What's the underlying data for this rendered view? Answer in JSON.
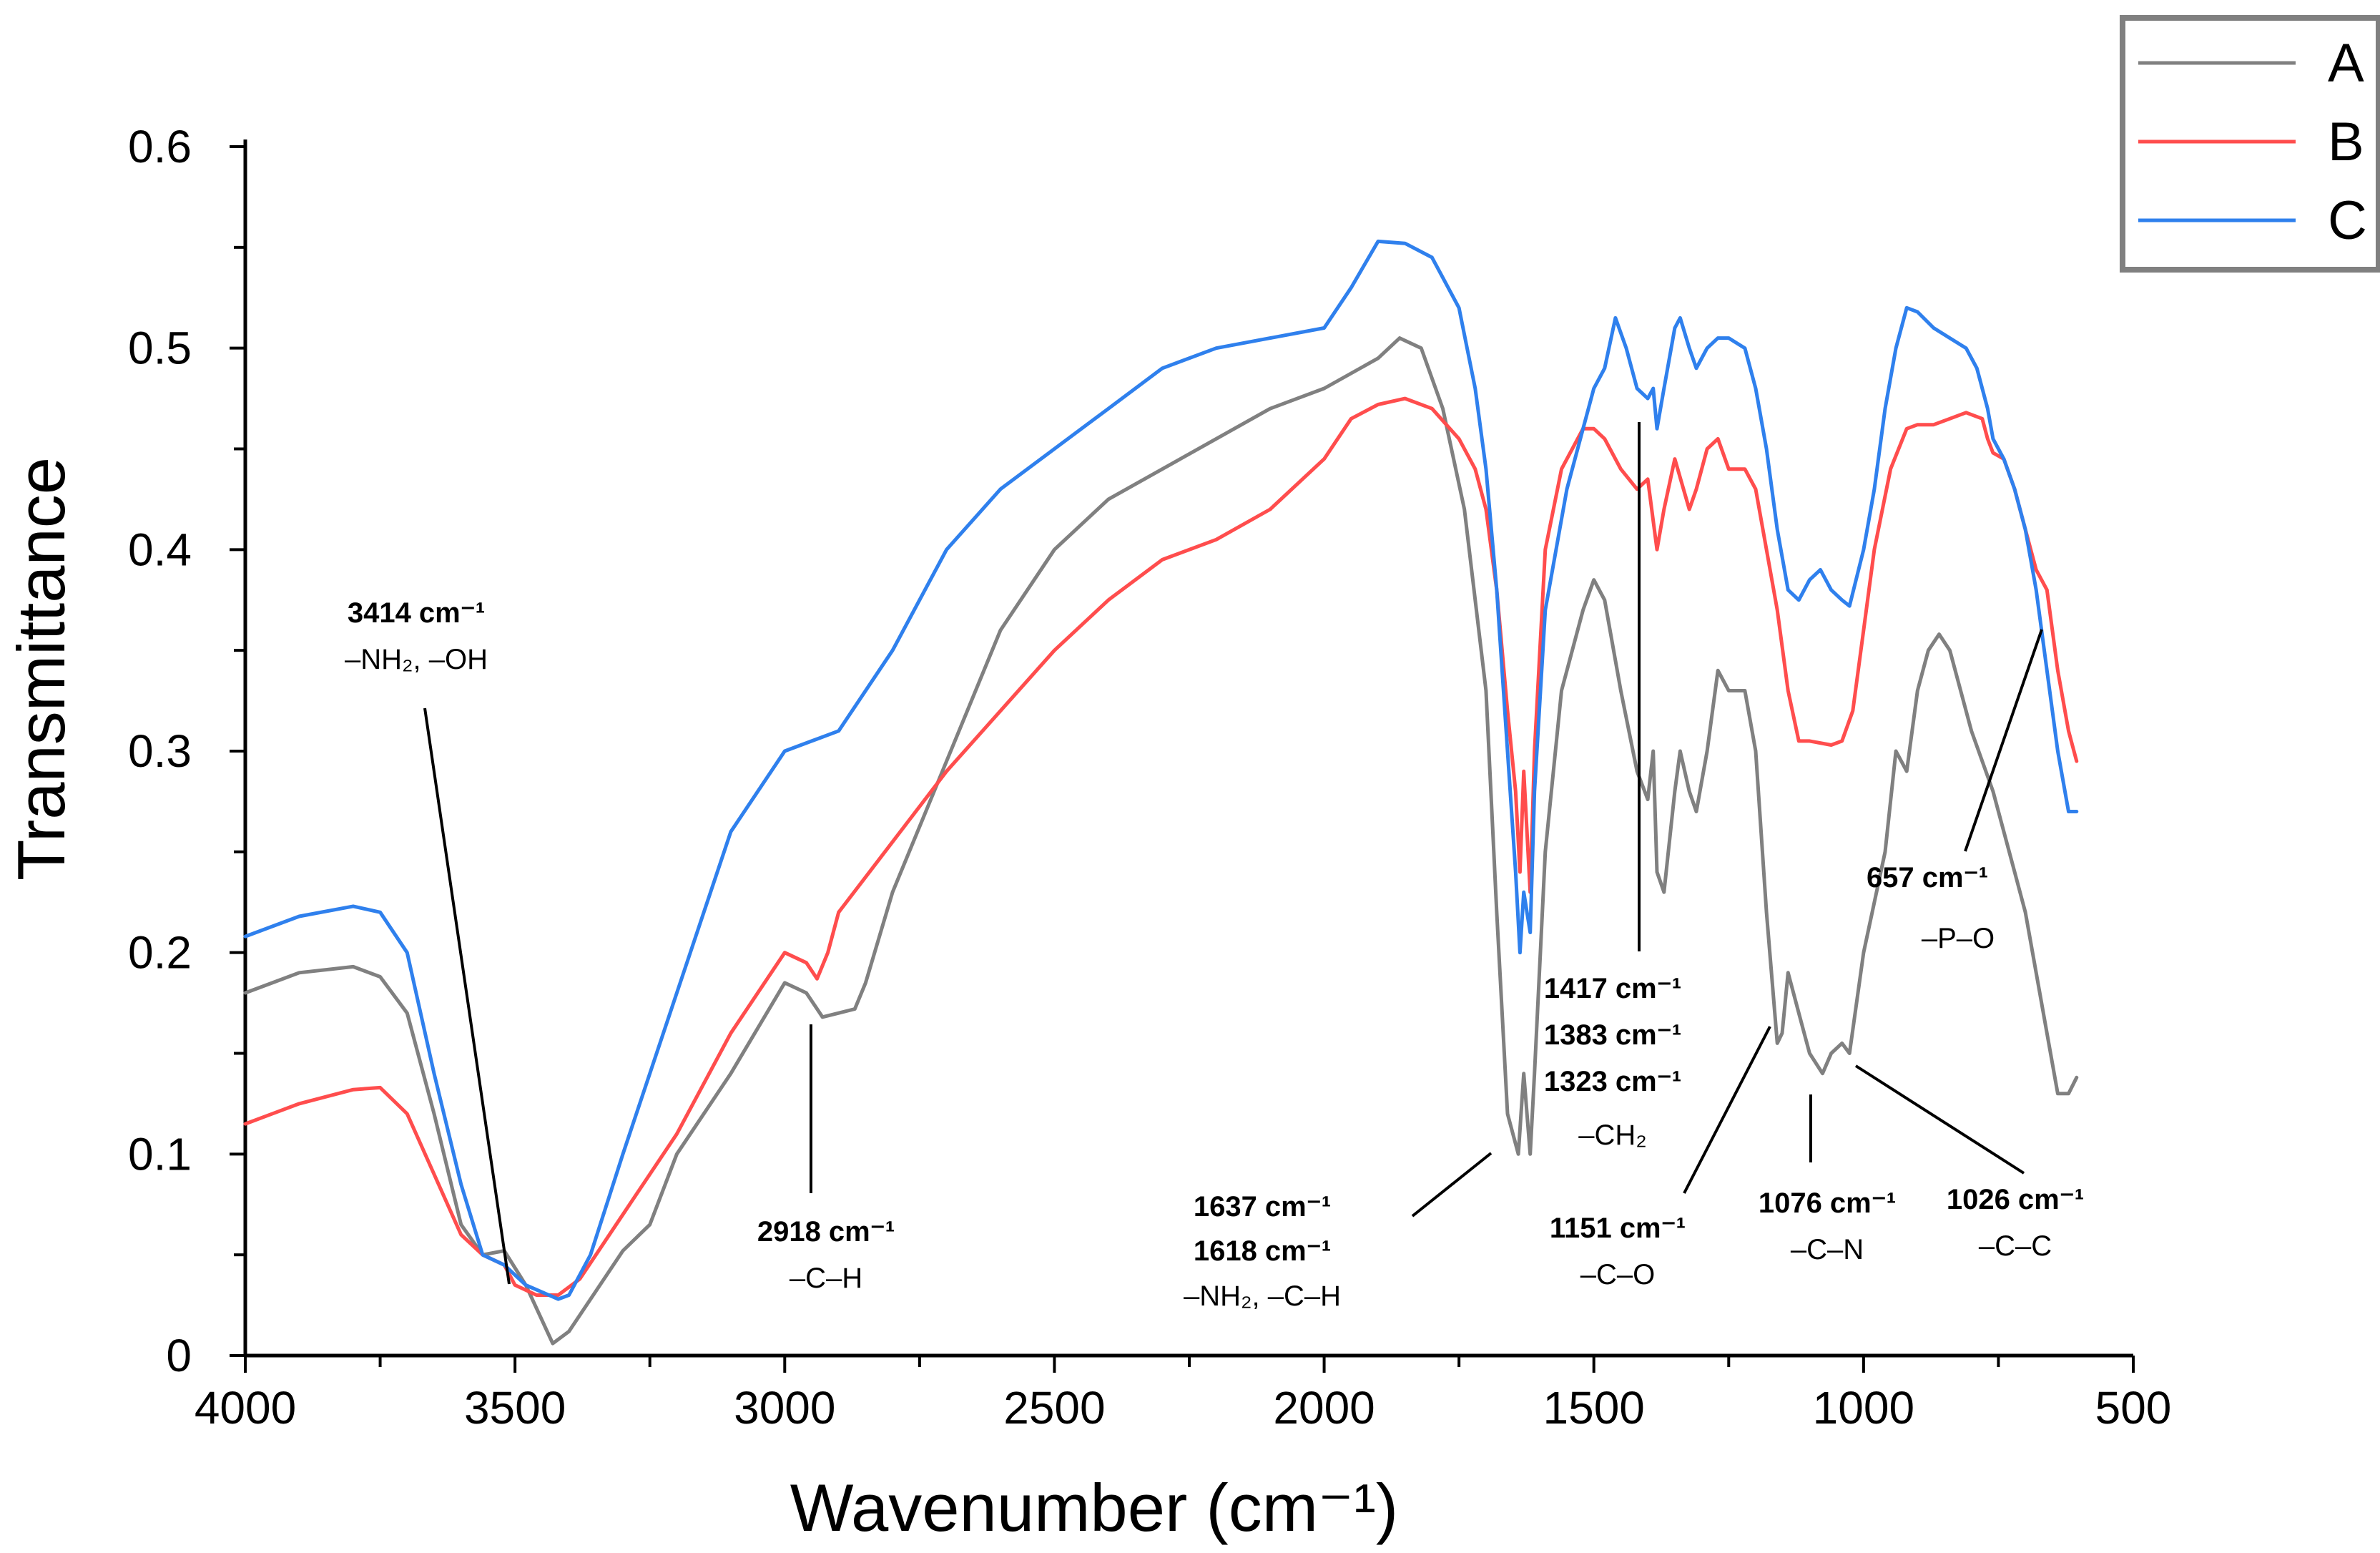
{
  "chart_data": {
    "type": "line",
    "xlabel": "Wavenumber (cm⁻¹)",
    "ylabel": "Transmittance",
    "xlim": [
      4000,
      500
    ],
    "ylim": [
      0,
      0.6
    ],
    "x_ticks": [
      4000,
      3500,
      3000,
      2500,
      2000,
      1500,
      1000,
      500
    ],
    "y_ticks": [
      {
        "value": 0,
        "label": "0"
      },
      {
        "value": 0.1,
        "label": "0.1"
      },
      {
        "value": 0.2,
        "label": "0.2"
      },
      {
        "value": 0.3,
        "label": "0.3"
      },
      {
        "value": 0.4,
        "label": "0.4"
      },
      {
        "value": 0.5,
        "label": "0.5"
      },
      {
        "value": 0.6,
        "label": "0.6"
      }
    ],
    "legend": [
      "A",
      "B",
      "C"
    ],
    "legend_position": "top-right",
    "series": [
      {
        "name": "A",
        "color": "#808080",
        "points": [
          [
            4000,
            0.18
          ],
          [
            3900,
            0.19
          ],
          [
            3800,
            0.193
          ],
          [
            3750,
            0.188
          ],
          [
            3700,
            0.17
          ],
          [
            3650,
            0.12
          ],
          [
            3600,
            0.065
          ],
          [
            3560,
            0.05
          ],
          [
            3520,
            0.052
          ],
          [
            3480,
            0.035
          ],
          [
            3430,
            0.006
          ],
          [
            3400,
            0.012
          ],
          [
            3350,
            0.032
          ],
          [
            3300,
            0.052
          ],
          [
            3250,
            0.065
          ],
          [
            3200,
            0.1
          ],
          [
            3100,
            0.14
          ],
          [
            3000,
            0.185
          ],
          [
            2960,
            0.18
          ],
          [
            2930,
            0.168
          ],
          [
            2900,
            0.17
          ],
          [
            2870,
            0.172
          ],
          [
            2850,
            0.185
          ],
          [
            2800,
            0.23
          ],
          [
            2700,
            0.295
          ],
          [
            2600,
            0.36
          ],
          [
            2500,
            0.4
          ],
          [
            2400,
            0.425
          ],
          [
            2300,
            0.44
          ],
          [
            2200,
            0.455
          ],
          [
            2100,
            0.47
          ],
          [
            2000,
            0.48
          ],
          [
            1900,
            0.495
          ],
          [
            1860,
            0.505
          ],
          [
            1820,
            0.5
          ],
          [
            1780,
            0.47
          ],
          [
            1740,
            0.42
          ],
          [
            1700,
            0.33
          ],
          [
            1680,
            0.22
          ],
          [
            1660,
            0.12
          ],
          [
            1640,
            0.1
          ],
          [
            1630,
            0.14
          ],
          [
            1618,
            0.1
          ],
          [
            1610,
            0.14
          ],
          [
            1590,
            0.25
          ],
          [
            1560,
            0.33
          ],
          [
            1520,
            0.37
          ],
          [
            1500,
            0.385
          ],
          [
            1480,
            0.375
          ],
          [
            1450,
            0.33
          ],
          [
            1420,
            0.29
          ],
          [
            1400,
            0.276
          ],
          [
            1390,
            0.3
          ],
          [
            1383,
            0.24
          ],
          [
            1370,
            0.23
          ],
          [
            1350,
            0.28
          ],
          [
            1340,
            0.3
          ],
          [
            1323,
            0.28
          ],
          [
            1310,
            0.27
          ],
          [
            1290,
            0.3
          ],
          [
            1270,
            0.34
          ],
          [
            1250,
            0.33
          ],
          [
            1220,
            0.33
          ],
          [
            1200,
            0.3
          ],
          [
            1180,
            0.22
          ],
          [
            1160,
            0.155
          ],
          [
            1151,
            0.16
          ],
          [
            1140,
            0.19
          ],
          [
            1120,
            0.17
          ],
          [
            1100,
            0.15
          ],
          [
            1076,
            0.14
          ],
          [
            1060,
            0.15
          ],
          [
            1040,
            0.155
          ],
          [
            1026,
            0.15
          ],
          [
            1000,
            0.2
          ],
          [
            960,
            0.25
          ],
          [
            940,
            0.3
          ],
          [
            920,
            0.29
          ],
          [
            900,
            0.33
          ],
          [
            880,
            0.35
          ],
          [
            860,
            0.358
          ],
          [
            840,
            0.35
          ],
          [
            820,
            0.33
          ],
          [
            800,
            0.31
          ],
          [
            760,
            0.28
          ],
          [
            740,
            0.26
          ],
          [
            720,
            0.24
          ],
          [
            700,
            0.22
          ],
          [
            680,
            0.19
          ],
          [
            660,
            0.16
          ],
          [
            640,
            0.13
          ],
          [
            620,
            0.13
          ],
          [
            605,
            0.138
          ]
        ]
      },
      {
        "name": "B",
        "color": "#ff4d4d",
        "points": [
          [
            4000,
            0.115
          ],
          [
            3900,
            0.125
          ],
          [
            3800,
            0.132
          ],
          [
            3750,
            0.133
          ],
          [
            3700,
            0.12
          ],
          [
            3650,
            0.09
          ],
          [
            3600,
            0.06
          ],
          [
            3560,
            0.05
          ],
          [
            3520,
            0.045
          ],
          [
            3500,
            0.035
          ],
          [
            3460,
            0.03
          ],
          [
            3420,
            0.03
          ],
          [
            3380,
            0.038
          ],
          [
            3300,
            0.07
          ],
          [
            3200,
            0.11
          ],
          [
            3100,
            0.16
          ],
          [
            3000,
            0.2
          ],
          [
            2960,
            0.195
          ],
          [
            2940,
            0.187
          ],
          [
            2920,
            0.2
          ],
          [
            2900,
            0.22
          ],
          [
            2800,
            0.255
          ],
          [
            2700,
            0.29
          ],
          [
            2600,
            0.32
          ],
          [
            2500,
            0.35
          ],
          [
            2400,
            0.375
          ],
          [
            2300,
            0.395
          ],
          [
            2200,
            0.405
          ],
          [
            2100,
            0.42
          ],
          [
            2000,
            0.445
          ],
          [
            1950,
            0.465
          ],
          [
            1900,
            0.472
          ],
          [
            1850,
            0.475
          ],
          [
            1800,
            0.47
          ],
          [
            1750,
            0.455
          ],
          [
            1720,
            0.44
          ],
          [
            1700,
            0.42
          ],
          [
            1680,
            0.38
          ],
          [
            1660,
            0.32
          ],
          [
            1645,
            0.28
          ],
          [
            1637,
            0.24
          ],
          [
            1630,
            0.29
          ],
          [
            1618,
            0.23
          ],
          [
            1610,
            0.3
          ],
          [
            1590,
            0.4
          ],
          [
            1560,
            0.44
          ],
          [
            1520,
            0.46
          ],
          [
            1500,
            0.46
          ],
          [
            1480,
            0.455
          ],
          [
            1450,
            0.44
          ],
          [
            1420,
            0.43
          ],
          [
            1400,
            0.435
          ],
          [
            1383,
            0.4
          ],
          [
            1370,
            0.42
          ],
          [
            1350,
            0.445
          ],
          [
            1323,
            0.42
          ],
          [
            1310,
            0.43
          ],
          [
            1290,
            0.45
          ],
          [
            1270,
            0.455
          ],
          [
            1250,
            0.44
          ],
          [
            1220,
            0.44
          ],
          [
            1200,
            0.43
          ],
          [
            1180,
            0.4
          ],
          [
            1160,
            0.37
          ],
          [
            1140,
            0.33
          ],
          [
            1120,
            0.305
          ],
          [
            1100,
            0.305
          ],
          [
            1060,
            0.303
          ],
          [
            1040,
            0.305
          ],
          [
            1020,
            0.32
          ],
          [
            1000,
            0.36
          ],
          [
            980,
            0.4
          ],
          [
            950,
            0.44
          ],
          [
            920,
            0.46
          ],
          [
            900,
            0.462
          ],
          [
            870,
            0.462
          ],
          [
            840,
            0.465
          ],
          [
            810,
            0.468
          ],
          [
            780,
            0.465
          ],
          [
            770,
            0.455
          ],
          [
            760,
            0.448
          ],
          [
            740,
            0.445
          ],
          [
            720,
            0.43
          ],
          [
            700,
            0.41
          ],
          [
            680,
            0.39
          ],
          [
            660,
            0.38
          ],
          [
            640,
            0.34
          ],
          [
            620,
            0.31
          ],
          [
            605,
            0.295
          ]
        ]
      },
      {
        "name": "C",
        "color": "#2f80ed",
        "points": [
          [
            4000,
            0.208
          ],
          [
            3900,
            0.218
          ],
          [
            3800,
            0.223
          ],
          [
            3750,
            0.22
          ],
          [
            3700,
            0.2
          ],
          [
            3650,
            0.14
          ],
          [
            3600,
            0.085
          ],
          [
            3560,
            0.05
          ],
          [
            3520,
            0.045
          ],
          [
            3480,
            0.035
          ],
          [
            3420,
            0.028
          ],
          [
            3400,
            0.03
          ],
          [
            3360,
            0.05
          ],
          [
            3300,
            0.1
          ],
          [
            3200,
            0.18
          ],
          [
            3100,
            0.26
          ],
          [
            3000,
            0.3
          ],
          [
            2950,
            0.305
          ],
          [
            2900,
            0.31
          ],
          [
            2800,
            0.35
          ],
          [
            2700,
            0.4
          ],
          [
            2600,
            0.43
          ],
          [
            2500,
            0.45
          ],
          [
            2400,
            0.47
          ],
          [
            2350,
            0.48
          ],
          [
            2300,
            0.49
          ],
          [
            2200,
            0.5
          ],
          [
            2100,
            0.505
          ],
          [
            2000,
            0.51
          ],
          [
            1950,
            0.53
          ],
          [
            1900,
            0.553
          ],
          [
            1850,
            0.552
          ],
          [
            1800,
            0.545
          ],
          [
            1750,
            0.52
          ],
          [
            1720,
            0.48
          ],
          [
            1700,
            0.44
          ],
          [
            1680,
            0.38
          ],
          [
            1660,
            0.3
          ],
          [
            1645,
            0.24
          ],
          [
            1637,
            0.2
          ],
          [
            1630,
            0.23
          ],
          [
            1618,
            0.21
          ],
          [
            1610,
            0.28
          ],
          [
            1590,
            0.37
          ],
          [
            1570,
            0.4
          ],
          [
            1550,
            0.43
          ],
          [
            1520,
            0.46
          ],
          [
            1500,
            0.48
          ],
          [
            1480,
            0.49
          ],
          [
            1460,
            0.515
          ],
          [
            1440,
            0.5
          ],
          [
            1420,
            0.48
          ],
          [
            1400,
            0.475
          ],
          [
            1390,
            0.48
          ],
          [
            1383,
            0.46
          ],
          [
            1370,
            0.48
          ],
          [
            1350,
            0.51
          ],
          [
            1340,
            0.515
          ],
          [
            1323,
            0.5
          ],
          [
            1310,
            0.49
          ],
          [
            1290,
            0.5
          ],
          [
            1270,
            0.505
          ],
          [
            1250,
            0.505
          ],
          [
            1220,
            0.5
          ],
          [
            1200,
            0.48
          ],
          [
            1180,
            0.45
          ],
          [
            1160,
            0.41
          ],
          [
            1140,
            0.38
          ],
          [
            1120,
            0.375
          ],
          [
            1100,
            0.385
          ],
          [
            1080,
            0.39
          ],
          [
            1060,
            0.38
          ],
          [
            1040,
            0.375
          ],
          [
            1026,
            0.372
          ],
          [
            1000,
            0.4
          ],
          [
            980,
            0.43
          ],
          [
            960,
            0.47
          ],
          [
            940,
            0.5
          ],
          [
            920,
            0.52
          ],
          [
            900,
            0.518
          ],
          [
            870,
            0.51
          ],
          [
            840,
            0.505
          ],
          [
            810,
            0.5
          ],
          [
            790,
            0.49
          ],
          [
            770,
            0.47
          ],
          [
            760,
            0.455
          ],
          [
            740,
            0.445
          ],
          [
            720,
            0.43
          ],
          [
            700,
            0.41
          ],
          [
            680,
            0.38
          ],
          [
            660,
            0.34
          ],
          [
            640,
            0.3
          ],
          [
            620,
            0.27
          ],
          [
            605,
            0.27
          ]
        ]
      }
    ],
    "annotations": [
      {
        "label": "3414 cm⁻¹",
        "group": "–NH₂, –OH"
      },
      {
        "label": "2918 cm⁻¹",
        "group": "–C–H"
      },
      {
        "label": "1637 cm⁻¹",
        "label2": "1618 cm⁻¹",
        "group": "–NH₂, –C–H"
      },
      {
        "label": "1417 cm⁻¹",
        "label2": "1383 cm⁻¹",
        "label3": "1323 cm⁻¹",
        "group": "–CH₂"
      },
      {
        "label": "1151 cm⁻¹",
        "group": "–C–O"
      },
      {
        "label": "1076 cm⁻¹",
        "group": "–C–N"
      },
      {
        "label": "1026 cm⁻¹",
        "group": "–C–C"
      },
      {
        "label": "657 cm⁻¹",
        "group": "–P–O"
      }
    ]
  }
}
